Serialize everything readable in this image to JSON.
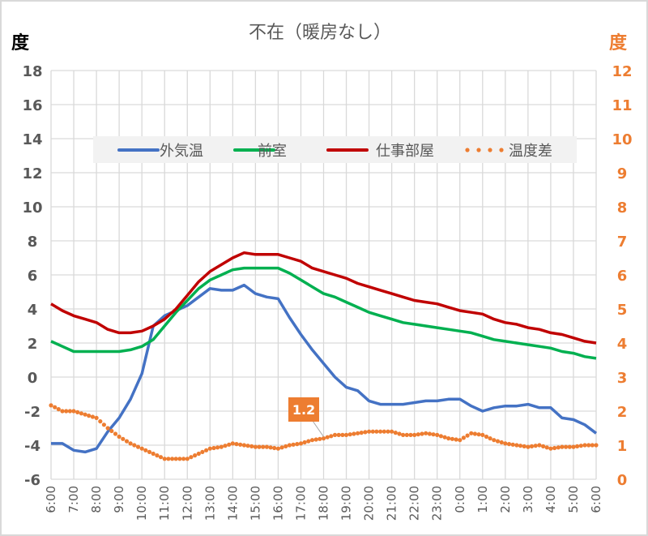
{
  "chart_data": {
    "type": "line",
    "title": "不在（暖房なし）",
    "ylabel": "度",
    "y2label": "度",
    "ylim": [
      -6,
      18
    ],
    "yticks": [
      -6,
      -4,
      -2,
      0,
      2,
      4,
      6,
      8,
      10,
      12,
      14,
      16,
      18
    ],
    "y2lim": [
      0,
      12
    ],
    "y2ticks": [
      0,
      1,
      2,
      3,
      4,
      5,
      6,
      7,
      8,
      9,
      10,
      11,
      12
    ],
    "xtick_labels": [
      "6:00",
      "7:00",
      "8:00",
      "9:00",
      "10:00",
      "11:00",
      "12:00",
      "13:00",
      "14:00",
      "15:00",
      "16:00",
      "17:00",
      "18:00",
      "19:00",
      "20:00",
      "21:00",
      "22:00",
      "23:00",
      "0:00",
      "1:00",
      "2:00",
      "3:00",
      "4:00",
      "5:00",
      "6:00"
    ],
    "grid": true,
    "legend_placement": "top-center",
    "x": [
      "6:00",
      "6:30",
      "7:00",
      "7:30",
      "8:00",
      "8:30",
      "9:00",
      "9:30",
      "10:00",
      "10:30",
      "11:00",
      "11:30",
      "12:00",
      "12:30",
      "13:00",
      "13:30",
      "14:00",
      "14:30",
      "15:00",
      "15:30",
      "16:00",
      "16:30",
      "17:00",
      "17:30",
      "18:00",
      "18:30",
      "19:00",
      "19:30",
      "20:00",
      "20:30",
      "21:00",
      "21:30",
      "22:00",
      "22:30",
      "23:00",
      "23:30",
      "0:00",
      "0:30",
      "1:00",
      "1:30",
      "2:00",
      "2:30",
      "3:00",
      "3:30",
      "4:00",
      "4:30",
      "5:00",
      "5:30",
      "6:00"
    ],
    "series": [
      {
        "name": "外気温",
        "axis": "left",
        "color": "#4472C4",
        "style": "solid",
        "values": [
          -3.9,
          -3.9,
          -4.3,
          -4.4,
          -4.2,
          -3.2,
          -2.4,
          -1.3,
          0.2,
          3.0,
          3.6,
          3.9,
          4.2,
          4.7,
          5.2,
          5.1,
          5.1,
          5.4,
          4.9,
          4.7,
          4.6,
          3.5,
          2.5,
          1.6,
          0.8,
          0.0,
          -0.6,
          -0.8,
          -1.4,
          -1.6,
          -1.6,
          -1.6,
          -1.5,
          -1.4,
          -1.4,
          -1.3,
          -1.3,
          -1.7,
          -2.0,
          -1.8,
          -1.7,
          -1.7,
          -1.6,
          -1.8,
          -1.8,
          -2.4,
          -2.5,
          -2.8,
          -3.3
        ]
      },
      {
        "name": "前室",
        "axis": "left",
        "color": "#00B050",
        "style": "solid",
        "values": [
          2.1,
          1.8,
          1.5,
          1.5,
          1.5,
          1.5,
          1.5,
          1.6,
          1.8,
          2.2,
          3.0,
          3.8,
          4.5,
          5.2,
          5.7,
          6.0,
          6.3,
          6.4,
          6.4,
          6.4,
          6.4,
          6.1,
          5.7,
          5.3,
          4.9,
          4.7,
          4.4,
          4.1,
          3.8,
          3.6,
          3.4,
          3.2,
          3.1,
          3.0,
          2.9,
          2.8,
          2.7,
          2.6,
          2.4,
          2.2,
          2.1,
          2.0,
          1.9,
          1.8,
          1.7,
          1.5,
          1.4,
          1.2,
          1.1
        ]
      },
      {
        "name": "仕事部屋",
        "axis": "left",
        "color": "#C00000",
        "style": "solid",
        "values": [
          4.3,
          3.9,
          3.6,
          3.4,
          3.2,
          2.8,
          2.6,
          2.6,
          2.7,
          3.0,
          3.4,
          4.0,
          4.8,
          5.6,
          6.2,
          6.6,
          7.0,
          7.3,
          7.2,
          7.2,
          7.2,
          7.0,
          6.8,
          6.4,
          6.2,
          6.0,
          5.8,
          5.5,
          5.3,
          5.1,
          4.9,
          4.7,
          4.5,
          4.4,
          4.3,
          4.1,
          3.9,
          3.8,
          3.7,
          3.4,
          3.2,
          3.1,
          2.9,
          2.8,
          2.6,
          2.5,
          2.3,
          2.1,
          2.0
        ]
      },
      {
        "name": "温度差",
        "axis": "right",
        "color": "#ED7D31",
        "style": "dotted",
        "values": [
          2.17,
          2.0,
          2.0,
          1.9,
          1.8,
          1.5,
          1.25,
          1.05,
          0.9,
          0.75,
          0.6,
          0.6,
          0.6,
          0.75,
          0.9,
          0.95,
          1.05,
          1.0,
          0.95,
          0.95,
          0.9,
          1.0,
          1.05,
          1.15,
          1.2,
          1.3,
          1.3,
          1.35,
          1.4,
          1.4,
          1.4,
          1.3,
          1.3,
          1.35,
          1.3,
          1.2,
          1.15,
          1.35,
          1.3,
          1.15,
          1.05,
          1.0,
          0.95,
          1.0,
          0.9,
          0.95,
          0.95,
          1.0,
          1.0
        ]
      }
    ],
    "annotations": [
      {
        "series": "温度差",
        "x": "18:00",
        "text": "1.2"
      }
    ]
  },
  "colors": {
    "grid": "#D9D9D9",
    "legend_bg": "#F2F2F2",
    "right_axis": "#ED7D31",
    "left_axis": "#595959"
  }
}
